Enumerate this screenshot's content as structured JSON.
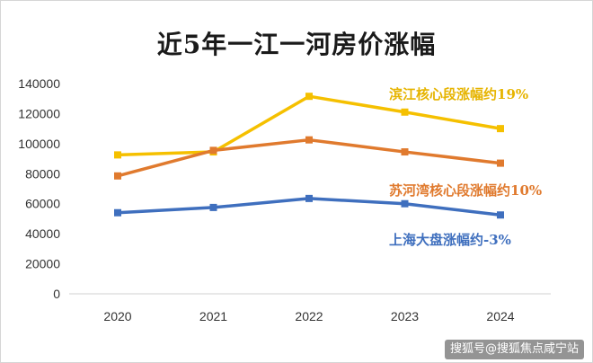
{
  "chart_data": {
    "type": "line",
    "title": "近5年一江一河房价涨幅",
    "categories": [
      "2020",
      "2021",
      "2022",
      "2023",
      "2024"
    ],
    "ylim": [
      0,
      140000
    ],
    "yticks": [
      "0",
      "20000",
      "40000",
      "60000",
      "80000",
      "100000",
      "120000",
      "140000"
    ],
    "grid": false,
    "series": [
      {
        "color": "#f5c000",
        "values": [
          92500,
          94500,
          131500,
          121000,
          110000
        ]
      },
      {
        "color": "#e07a2e",
        "values": [
          78500,
          95500,
          102500,
          94500,
          87000
        ]
      },
      {
        "color": "#3f6fbe",
        "values": [
          54000,
          57500,
          63500,
          60000,
          52500
        ]
      }
    ],
    "annotations": [
      {
        "text": "滨江核心段涨幅约19%",
        "color": "#e6b400"
      },
      {
        "text": "苏河湾核心段涨幅约10%",
        "color": "#e07a2e"
      },
      {
        "text": "上海大盘涨幅约-3%",
        "color": "#3f6fbe"
      }
    ]
  },
  "watermark": "搜狐号@搜狐焦点咸宁站"
}
